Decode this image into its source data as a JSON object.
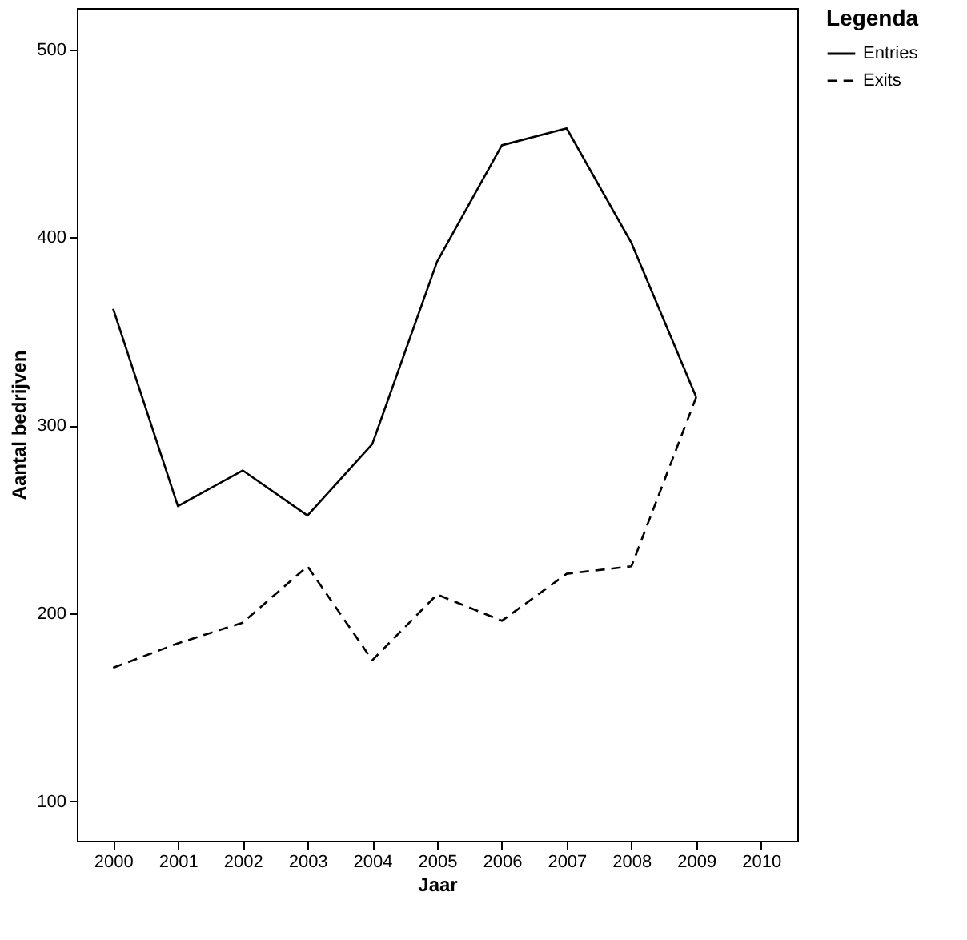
{
  "chart_data": {
    "type": "line",
    "xlabel": "Jaar",
    "ylabel": "Aantal bedrijven",
    "legend_title": "Legenda",
    "x": [
      2000,
      2001,
      2002,
      2003,
      2004,
      2005,
      2006,
      2007,
      2008,
      2009
    ],
    "series": [
      {
        "name": "Entries",
        "color": "#000000",
        "line_style": "solid",
        "values": [
          362,
          257,
          276,
          252,
          290,
          387,
          449,
          458,
          397,
          315
        ]
      },
      {
        "name": "Exits",
        "color": "#000000",
        "line_style": "dashed",
        "values": [
          171,
          184,
          195,
          225,
          175,
          210,
          196,
          221,
          225,
          315
        ]
      }
    ],
    "xlim": [
      1999.44,
      2010.56
    ],
    "xticks": [
      2000,
      2001,
      2002,
      2003,
      2004,
      2005,
      2006,
      2007,
      2008,
      2009,
      2010
    ],
    "ylim": [
      79,
      522
    ],
    "yticks": [
      100,
      200,
      300,
      400,
      500
    ],
    "grid": false,
    "legend": "top right",
    "marker": "none"
  }
}
